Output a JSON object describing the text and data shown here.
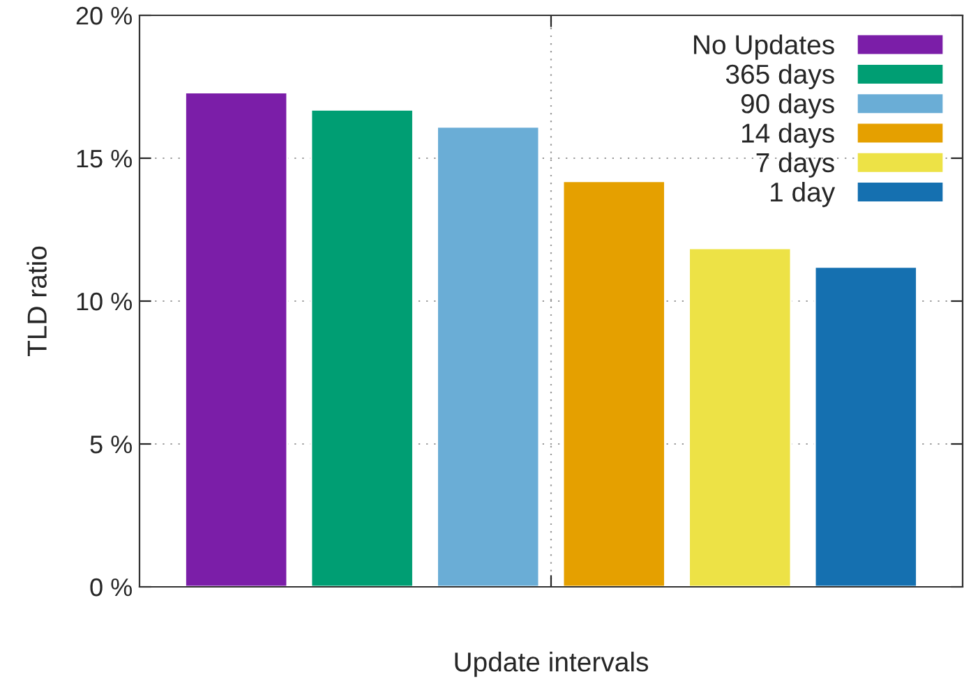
{
  "chart_data": {
    "type": "bar",
    "xlabel": "Update intervals",
    "ylabel": "TLD ratio",
    "categories": [
      null
    ],
    "series": [
      {
        "name": "No Updates",
        "color": "#7b1ea8",
        "values": [
          17.3
        ]
      },
      {
        "name": "365 days",
        "color": "#009e73",
        "values": [
          16.7
        ]
      },
      {
        "name": "90 days",
        "color": "#6aadd6",
        "values": [
          16.1
        ]
      },
      {
        "name": "14 days",
        "color": "#e5a000",
        "values": [
          14.2
        ]
      },
      {
        "name": "7 days",
        "color": "#ede246",
        "values": [
          11.85
        ]
      },
      {
        "name": "1 day",
        "color": "#1570b0",
        "values": [
          11.2
        ]
      }
    ],
    "ylim": [
      0,
      20
    ],
    "yticks": [
      {
        "value": 0,
        "label": "0 %"
      },
      {
        "value": 5,
        "label": "5 %"
      },
      {
        "value": 10,
        "label": "10 %"
      },
      {
        "value": 15,
        "label": "15 %"
      },
      {
        "value": 20,
        "label": "20 %"
      }
    ],
    "grid": true,
    "legend": "top right"
  }
}
